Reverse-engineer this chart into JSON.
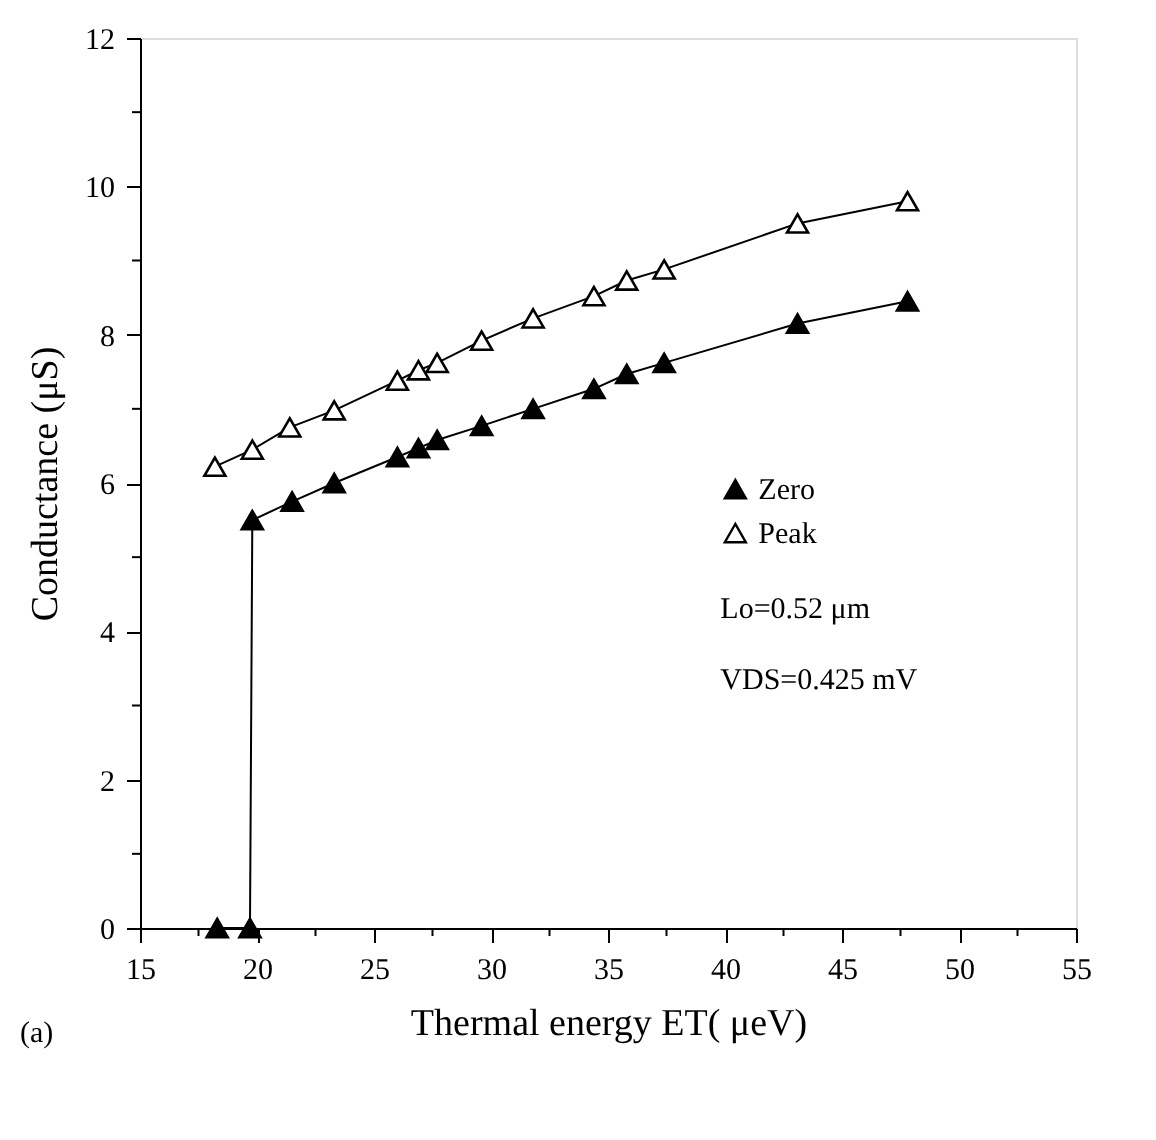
{
  "chart_data": {
    "type": "line",
    "xlabel": "Thermal energy ET( μeV)",
    "ylabel": "Conductance (μS)",
    "xlim": [
      15,
      55
    ],
    "ylim": [
      0,
      12
    ],
    "xticks": [
      15,
      {
        "value": 17.5,
        "label": null
      },
      20,
      {
        "value": 22.5,
        "label": null
      },
      25,
      {
        "value": 27.5,
        "label": null
      },
      30,
      {
        "value": 32.5,
        "label": null
      },
      35,
      {
        "value": 37.5,
        "label": null
      },
      40,
      {
        "value": 42.5,
        "label": null
      },
      45,
      {
        "value": 47.5,
        "label": null
      },
      50,
      {
        "value": 52.5,
        "label": null
      },
      55
    ],
    "yticks": [
      0,
      {
        "value": 1,
        "label": null
      },
      2,
      {
        "value": 3,
        "label": null
      },
      4,
      {
        "value": 5,
        "label": null
      },
      6,
      {
        "value": 7,
        "label": null
      },
      8,
      {
        "value": 9,
        "label": null
      },
      10,
      {
        "value": 11,
        "label": null
      },
      12
    ],
    "series": [
      {
        "name": "Zero",
        "color": "#000000",
        "x": [
          18.3,
          19.7,
          19.8,
          21.5,
          23.3,
          26.0,
          26.9,
          27.7,
          29.6,
          31.8,
          34.4,
          35.8,
          37.4,
          43.1,
          47.8
        ],
        "values": [
          0,
          0,
          5.5,
          5.75,
          6.0,
          6.35,
          6.47,
          6.58,
          6.77,
          7.0,
          7.27,
          7.47,
          7.62,
          8.15,
          8.45
        ]
      },
      {
        "name": "Peak",
        "color": "#000000",
        "x": [
          18.2,
          19.8,
          21.4,
          23.3,
          26.0,
          26.9,
          27.7,
          29.6,
          31.8,
          34.4,
          35.8,
          37.4,
          43.1,
          47.8
        ],
        "values": [
          6.22,
          6.45,
          6.75,
          6.98,
          7.38,
          7.52,
          7.62,
          7.92,
          8.22,
          8.52,
          8.73,
          8.88,
          9.5,
          9.8
        ]
      }
    ],
    "marker": "triangle",
    "legend": "right",
    "grid": false,
    "annotations": [
      "Lo=0.52 μm",
      "VDS=0.425 mV",
      "(a)"
    ]
  }
}
